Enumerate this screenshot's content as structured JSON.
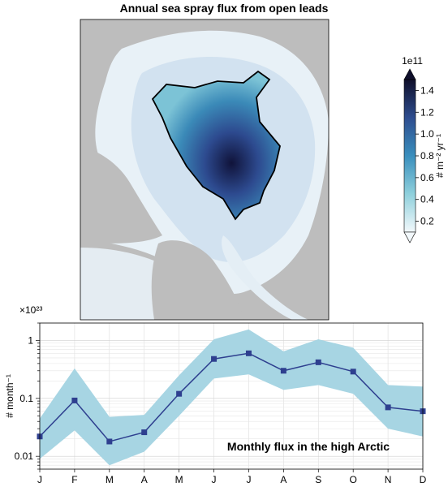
{
  "chart_data": [
    {
      "type": "heatmap",
      "title": "Annual sea spray flux from open leads",
      "colorbar": {
        "multiplier": "1e11",
        "label": "# m⁻² yr⁻¹",
        "range": [
          0.1,
          1.5
        ],
        "ticks": [
          "0.2",
          "0.4",
          "0.6",
          "0.8",
          "1.0",
          "1.2",
          "1.4"
        ],
        "extend": "both",
        "colors": [
          "#f2f8fb",
          "#8fd0dc",
          "#3a8fbd",
          "#2e4d8f",
          "#0f0f2b"
        ]
      },
      "colors": {
        "land": "#bdbdbd",
        "ocean": "#ffffff",
        "region_outline": "#000000"
      }
    },
    {
      "type": "line",
      "label": "Monthly flux in the high Arctic",
      "ylabel": "# month⁻¹",
      "yscale": "log",
      "multiplier": "×10²³",
      "ylim": [
        0.006,
        2.0
      ],
      "yticks": [
        "0.01",
        "0.1",
        "1"
      ],
      "categories": [
        "J",
        "F",
        "M",
        "A",
        "M",
        "J",
        "J",
        "A",
        "S",
        "O",
        "N",
        "D"
      ],
      "series": [
        {
          "values": [
            0.022,
            0.092,
            0.018,
            0.026,
            0.12,
            0.48,
            0.6,
            0.3,
            0.42,
            0.29,
            0.07,
            0.06
          ],
          "lower": [
            0.009,
            0.028,
            0.007,
            0.012,
            0.05,
            0.22,
            0.26,
            0.14,
            0.17,
            0.12,
            0.03,
            0.022
          ],
          "upper": [
            0.045,
            0.33,
            0.048,
            0.052,
            0.25,
            1.05,
            1.55,
            0.65,
            1.05,
            0.75,
            0.17,
            0.16
          ],
          "color": "#2e3f8f",
          "band_color": "#a7d5e3"
        }
      ],
      "grid": true
    }
  ]
}
